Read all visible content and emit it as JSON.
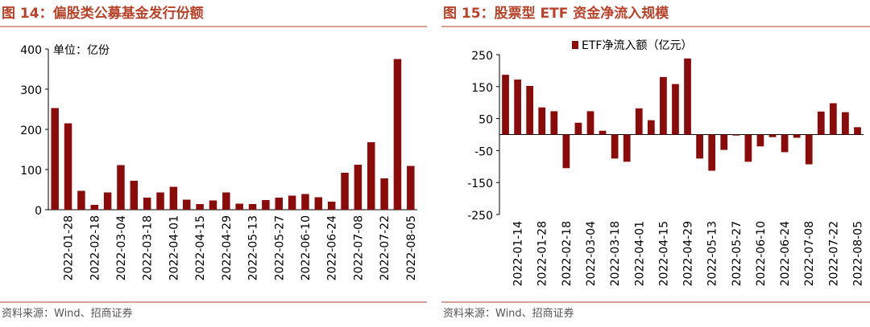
{
  "chart_data": [
    {
      "type": "bar",
      "title": "图 14：偏股类公募基金发行份额",
      "note": "单位：亿份",
      "source": "资料来源：Wind、招商证券",
      "categories": [
        null,
        "2022-01-28",
        null,
        "2022-02-18",
        null,
        "2022-03-04",
        null,
        "2022-03-18",
        null,
        "2022-04-01",
        null,
        "2022-04-15",
        null,
        "2022-04-29",
        null,
        "2022-05-13",
        null,
        "2022-05-27",
        null,
        "2022-06-10",
        null,
        "2022-06-24",
        null,
        "2022-07-08",
        null,
        "2022-07-22",
        null,
        "2022-08-05"
      ],
      "values": [
        253,
        215,
        47,
        12,
        43,
        111,
        72,
        30,
        43,
        57,
        25,
        14,
        23,
        43,
        15,
        14,
        24,
        30,
        35,
        39,
        31,
        20,
        92,
        112,
        168,
        78,
        375,
        109
      ],
      "color": "#8b0a0a",
      "ylim": [
        0,
        400
      ],
      "yticks": [
        0,
        100,
        200,
        300,
        400
      ]
    },
    {
      "type": "bar",
      "title": "图 15：股票型 ETF 资金净流入规模",
      "source": "资料来源：Wind、招商证券",
      "categories": [
        null,
        "2022-01-14",
        null,
        "2022-01-28",
        null,
        "2022-02-18",
        null,
        "2022-03-04",
        null,
        "2022-03-18",
        null,
        "2022-04-01",
        null,
        "2022-04-15",
        null,
        "2022-04-29",
        null,
        "2022-05-13",
        null,
        "2022-05-27",
        null,
        "2022-06-10",
        null,
        "2022-06-24",
        null,
        "2022-07-08",
        null,
        "2022-07-22",
        null,
        "2022-08-05"
      ],
      "series": [
        {
          "name": "ETF净流入额（亿元）",
          "color": "#8b0a0a",
          "values": [
            187,
            172,
            152,
            85,
            73,
            -105,
            37,
            73,
            12,
            -75,
            -85,
            82,
            45,
            180,
            158,
            238,
            -75,
            -113,
            -48,
            -3,
            -85,
            -37,
            -8,
            -55,
            -10,
            -93,
            72,
            98,
            70,
            23
          ]
        }
      ],
      "ylim": [
        -250,
        250
      ],
      "yticks": [
        -250,
        -150,
        -50,
        50,
        150,
        250
      ]
    }
  ]
}
